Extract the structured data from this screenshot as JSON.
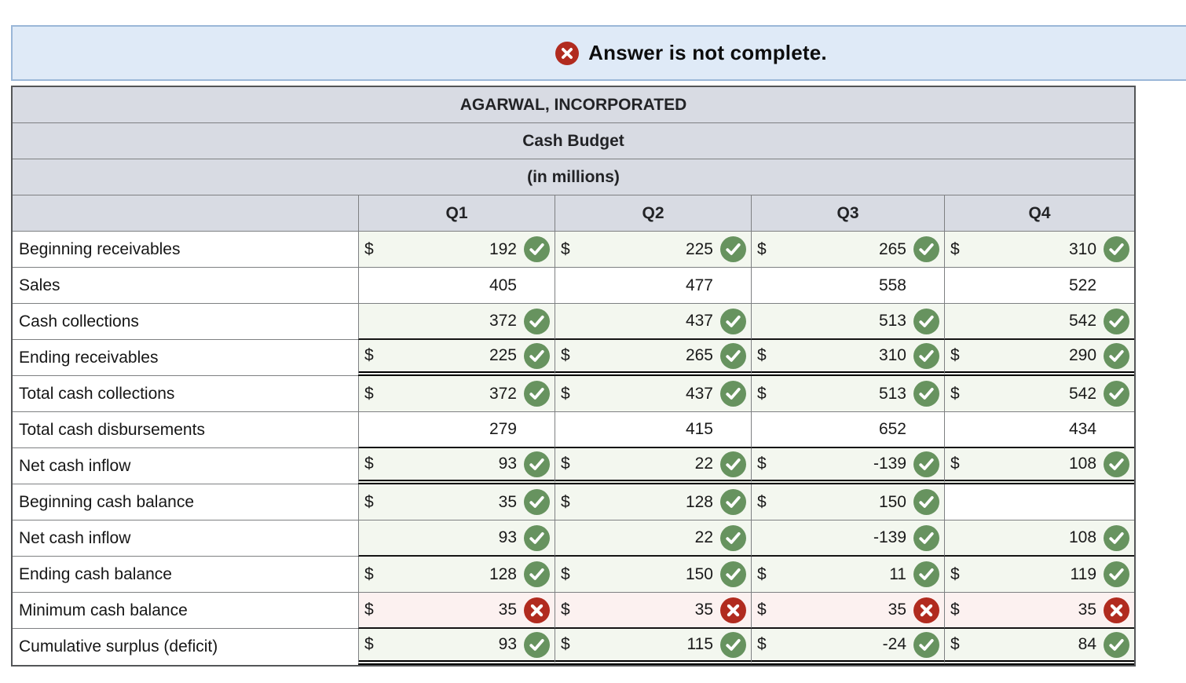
{
  "banner": {
    "text": "Answer is not complete.",
    "icon": "x-circle-icon",
    "bg_color": "#dfeaf7",
    "border_color": "#9ab7d8",
    "icon_color": "#b12b1f"
  },
  "table": {
    "title1": "AGARWAL, INCORPORATED",
    "title2": "Cash Budget",
    "title3": "(in millions)",
    "columns": [
      "Q1",
      "Q2",
      "Q3",
      "Q4"
    ],
    "colors": {
      "header_bg": "#d8dbe3",
      "correct_cell_bg": "#f3f7ef",
      "incorrect_cell_bg": "#fcf1f0",
      "check_icon": "#67935f",
      "x_icon": "#b12b1f"
    },
    "rows": [
      {
        "label": "Beginning receivables",
        "border": "gray",
        "cells": [
          {
            "dollar": "$",
            "value": "192",
            "icon": "check",
            "bg": "green"
          },
          {
            "dollar": "$",
            "value": "225",
            "icon": "check",
            "bg": "green"
          },
          {
            "dollar": "$",
            "value": "265",
            "icon": "check",
            "bg": "green"
          },
          {
            "dollar": "$",
            "value": "310",
            "icon": "check",
            "bg": "green"
          }
        ]
      },
      {
        "label": "Sales",
        "border": "gray",
        "cells": [
          {
            "dollar": "",
            "value": "405",
            "icon": "none",
            "bg": "white"
          },
          {
            "dollar": "",
            "value": "477",
            "icon": "none",
            "bg": "white"
          },
          {
            "dollar": "",
            "value": "558",
            "icon": "none",
            "bg": "white"
          },
          {
            "dollar": "",
            "value": "522",
            "icon": "none",
            "bg": "white"
          }
        ]
      },
      {
        "label": "Cash collections",
        "border": "black",
        "cells": [
          {
            "dollar": "",
            "value": "372",
            "icon": "check",
            "bg": "green"
          },
          {
            "dollar": "",
            "value": "437",
            "icon": "check",
            "bg": "green"
          },
          {
            "dollar": "",
            "value": "513",
            "icon": "check",
            "bg": "green"
          },
          {
            "dollar": "",
            "value": "542",
            "icon": "check",
            "bg": "green"
          }
        ]
      },
      {
        "label": "Ending receivables",
        "border": "double",
        "cells": [
          {
            "dollar": "$",
            "value": "225",
            "icon": "check",
            "bg": "green"
          },
          {
            "dollar": "$",
            "value": "265",
            "icon": "check",
            "bg": "green"
          },
          {
            "dollar": "$",
            "value": "310",
            "icon": "check",
            "bg": "green"
          },
          {
            "dollar": "$",
            "value": "290",
            "icon": "check",
            "bg": "green"
          }
        ]
      },
      {
        "label": "Total cash collections",
        "border": "gray",
        "cells": [
          {
            "dollar": "$",
            "value": "372",
            "icon": "check",
            "bg": "green"
          },
          {
            "dollar": "$",
            "value": "437",
            "icon": "check",
            "bg": "green"
          },
          {
            "dollar": "$",
            "value": "513",
            "icon": "check",
            "bg": "green"
          },
          {
            "dollar": "$",
            "value": "542",
            "icon": "check",
            "bg": "green"
          }
        ]
      },
      {
        "label": "Total cash disbursements",
        "border": "black",
        "cells": [
          {
            "dollar": "",
            "value": "279",
            "icon": "none",
            "bg": "white"
          },
          {
            "dollar": "",
            "value": "415",
            "icon": "none",
            "bg": "white"
          },
          {
            "dollar": "",
            "value": "652",
            "icon": "none",
            "bg": "white"
          },
          {
            "dollar": "",
            "value": "434",
            "icon": "none",
            "bg": "white"
          }
        ]
      },
      {
        "label": "Net cash inflow",
        "border": "double",
        "cells": [
          {
            "dollar": "$",
            "value": "93",
            "icon": "check",
            "bg": "green"
          },
          {
            "dollar": "$",
            "value": "22",
            "icon": "check",
            "bg": "green"
          },
          {
            "dollar": "$",
            "value": "-139",
            "icon": "check",
            "bg": "green"
          },
          {
            "dollar": "$",
            "value": "108",
            "icon": "check",
            "bg": "green"
          }
        ]
      },
      {
        "label": "Beginning cash balance",
        "border": "gray",
        "cells": [
          {
            "dollar": "$",
            "value": "35",
            "icon": "check",
            "bg": "green"
          },
          {
            "dollar": "$",
            "value": "128",
            "icon": "check",
            "bg": "green"
          },
          {
            "dollar": "$",
            "value": "150",
            "icon": "check",
            "bg": "green"
          },
          {
            "dollar": "",
            "value": "",
            "icon": "none",
            "bg": "white"
          }
        ]
      },
      {
        "label": "Net cash inflow",
        "border": "black",
        "cells": [
          {
            "dollar": "",
            "value": "93",
            "icon": "check",
            "bg": "green"
          },
          {
            "dollar": "",
            "value": "22",
            "icon": "check",
            "bg": "green"
          },
          {
            "dollar": "",
            "value": "-139",
            "icon": "check",
            "bg": "green"
          },
          {
            "dollar": "",
            "value": "108",
            "icon": "check",
            "bg": "green"
          }
        ]
      },
      {
        "label": "Ending cash balance",
        "border": "gray",
        "cells": [
          {
            "dollar": "$",
            "value": "128",
            "icon": "check",
            "bg": "green"
          },
          {
            "dollar": "$",
            "value": "150",
            "icon": "check",
            "bg": "green"
          },
          {
            "dollar": "$",
            "value": "11",
            "icon": "check",
            "bg": "green"
          },
          {
            "dollar": "$",
            "value": "119",
            "icon": "check",
            "bg": "green"
          }
        ]
      },
      {
        "label": "Minimum cash balance",
        "border": "black",
        "cells": [
          {
            "dollar": "$",
            "value": "35",
            "icon": "x",
            "bg": "pink"
          },
          {
            "dollar": "$",
            "value": "35",
            "icon": "x",
            "bg": "pink"
          },
          {
            "dollar": "$",
            "value": "35",
            "icon": "x",
            "bg": "pink"
          },
          {
            "dollar": "$",
            "value": "35",
            "icon": "x",
            "bg": "pink"
          }
        ]
      },
      {
        "label": "Cumulative surplus (deficit)",
        "border": "double",
        "cells": [
          {
            "dollar": "$",
            "value": "93",
            "icon": "check",
            "bg": "green"
          },
          {
            "dollar": "$",
            "value": "115",
            "icon": "check",
            "bg": "green"
          },
          {
            "dollar": "$",
            "value": "-24",
            "icon": "check",
            "bg": "green"
          },
          {
            "dollar": "$",
            "value": "84",
            "icon": "check",
            "bg": "green"
          }
        ]
      }
    ]
  }
}
